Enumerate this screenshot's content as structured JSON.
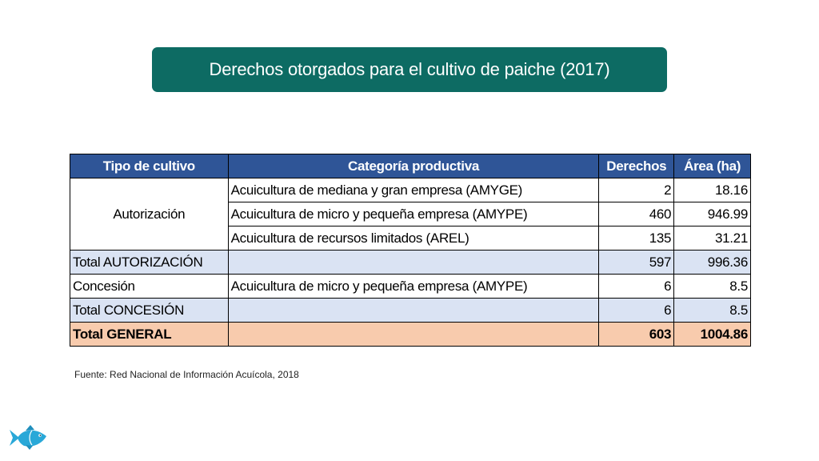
{
  "title": "Derechos otorgados para el cultivo de paiche (2017)",
  "table": {
    "headers": [
      "Tipo de cultivo",
      "Categoría productiva",
      "Derechos",
      "Área (ha)"
    ],
    "autorizacion": {
      "label": "Autorización",
      "rows": [
        {
          "categoria": "Acuicultura de mediana y gran empresa (AMYGE)",
          "derechos": "2",
          "area": "18.16"
        },
        {
          "categoria": "Acuicultura de micro y pequeña empresa (AMYPE)",
          "derechos": "460",
          "area": "946.99"
        },
        {
          "categoria": "Acuicultura de recursos limitados (AREL)",
          "derechos": "135",
          "area": "31.21"
        }
      ]
    },
    "total_autorizacion": {
      "label": "Total AUTORIZACIÓN",
      "derechos": "597",
      "area": "996.36"
    },
    "concesion": {
      "label": "Concesión",
      "categoria": "Acuicultura de micro y pequeña empresa (AMYPE)",
      "derechos": "6",
      "area": "8.5"
    },
    "total_concesion": {
      "label": "Total CONCESIÓN",
      "derechos": "6",
      "area": "8.5"
    },
    "total_general": {
      "label": "Total GENERAL",
      "derechos": "603",
      "area": "1004.86"
    }
  },
  "source": "Fuente: Red Nacional de Información Acuícola, 2018",
  "colors": {
    "title_bg": "#0d6b63",
    "header_bg": "#2f5597",
    "subtotal_bg": "#dae3f3",
    "total_bg": "#f8cbad",
    "fish": "#29a8d8"
  },
  "icons": {
    "logo": "fish-icon"
  }
}
